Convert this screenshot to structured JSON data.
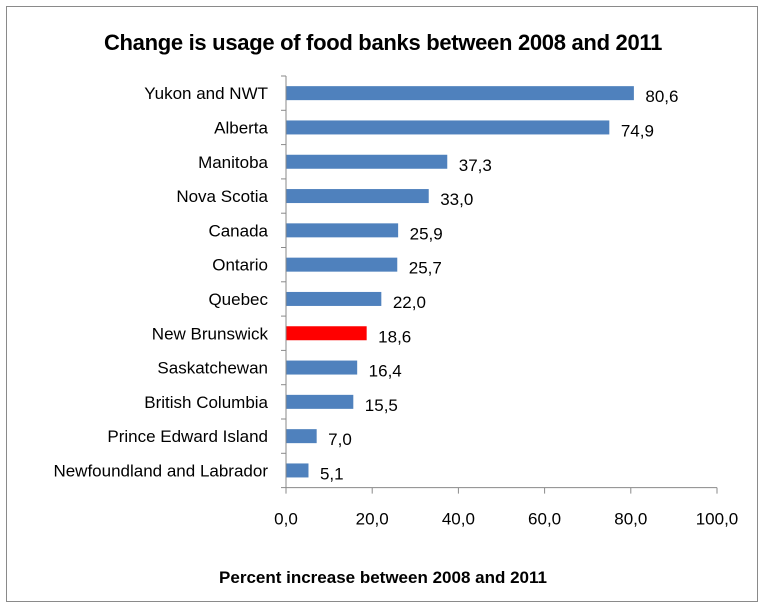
{
  "chart_data": {
    "type": "bar",
    "orientation": "horizontal",
    "title": "Change is usage of food banks between 2008 and 2011",
    "xlabel": "Percent increase between 2008 and 2011",
    "ylabel": "",
    "xlim": [
      0,
      100
    ],
    "x_ticks": [
      "0,0",
      "20,0",
      "40,0",
      "60,0",
      "80,0",
      "100,0"
    ],
    "grid": false,
    "legend": "none",
    "categories": [
      "Yukon and NWT",
      "Alberta",
      "Manitoba",
      "Nova Scotia",
      "Canada",
      "Ontario",
      "Quebec",
      "New Brunswick",
      "Saskatchewan",
      "British Columbia",
      "Prince Edward Island",
      "Newfoundland and Labrador"
    ],
    "values": [
      80.6,
      74.9,
      37.3,
      33.0,
      25.9,
      25.7,
      22.0,
      18.6,
      16.4,
      15.5,
      7.0,
      5.1
    ],
    "value_labels": [
      "80,6",
      "74,9",
      "37,3",
      "33,0",
      "25,9",
      "25,7",
      "22,0",
      "18,6",
      "16,4",
      "15,5",
      "7,0",
      "5,1"
    ],
    "colors": {
      "default": "#4F81BD",
      "highlight": "#FF0000",
      "highlight_category": "New Brunswick"
    }
  }
}
